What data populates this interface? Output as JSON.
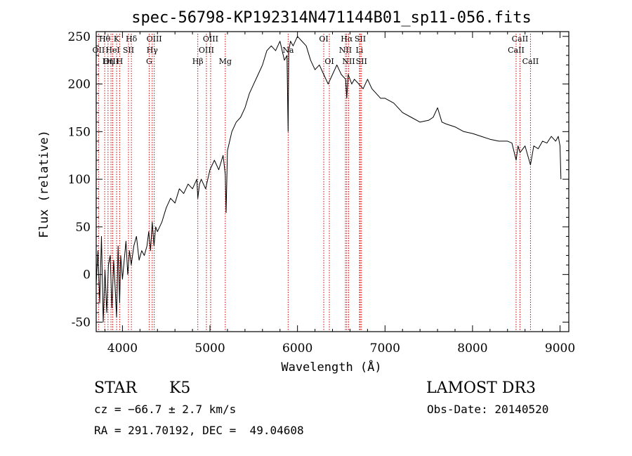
{
  "chart_data": {
    "type": "line",
    "title": "spec-56798-KP192314N471144B01_sp11-056.fits",
    "xlabel": "Wavelength (Å)",
    "ylabel": "Flux (relative)",
    "xlim": [
      3700,
      9100
    ],
    "ylim": [
      -60,
      255
    ],
    "x_ticks": [
      4000,
      5000,
      6000,
      7000,
      8000,
      9000
    ],
    "y_ticks": [
      -50,
      0,
      50,
      100,
      150,
      200,
      250
    ],
    "grid": false,
    "series": [
      {
        "x": [
          3700,
          3720,
          3740,
          3760,
          3780,
          3800,
          3820,
          3840,
          3860,
          3880,
          3900,
          3920,
          3933,
          3950,
          3968,
          3980,
          4000,
          4020,
          4040,
          4060,
          4080,
          4100,
          4130,
          4160,
          4190,
          4220,
          4250,
          4280,
          4300,
          4320,
          4340,
          4360,
          4380,
          4400,
          4450,
          4500,
          4550,
          4600,
          4650,
          4700,
          4750,
          4800,
          4850,
          4861,
          4880,
          4900,
          4950,
          5000,
          5050,
          5100,
          5150,
          5175,
          5184,
          5200,
          5250,
          5300,
          5350,
          5400,
          5450,
          5500,
          5550,
          5600,
          5650,
          5700,
          5750,
          5800,
          5850,
          5880,
          5893,
          5900,
          5920,
          5950,
          6000,
          6050,
          6100,
          6150,
          6200,
          6250,
          6300,
          6350,
          6400,
          6450,
          6500,
          6550,
          6563,
          6580,
          6620,
          6650,
          6700,
          6750,
          6800,
          6850,
          6900,
          6950,
          7000,
          7100,
          7200,
          7300,
          7400,
          7500,
          7550,
          7600,
          7650,
          7700,
          7800,
          7900,
          8000,
          8100,
          8200,
          8300,
          8400,
          8450,
          8498,
          8520,
          8542,
          8600,
          8662,
          8700,
          8750,
          8800,
          8850,
          8900,
          8950,
          8980,
          9000,
          9010
        ],
        "y": [
          -10,
          25,
          -30,
          40,
          -50,
          5,
          -40,
          10,
          20,
          -35,
          15,
          -20,
          -45,
          30,
          -30,
          20,
          -5,
          15,
          35,
          0,
          25,
          10,
          30,
          40,
          15,
          25,
          20,
          30,
          45,
          25,
          55,
          30,
          50,
          45,
          55,
          70,
          80,
          75,
          90,
          85,
          95,
          90,
          100,
          80,
          95,
          100,
          90,
          110,
          120,
          110,
          125,
          105,
          65,
          130,
          150,
          160,
          165,
          175,
          190,
          200,
          210,
          220,
          235,
          240,
          235,
          245,
          225,
          230,
          150,
          235,
          245,
          240,
          250,
          245,
          240,
          225,
          215,
          220,
          210,
          200,
          210,
          220,
          210,
          205,
          185,
          210,
          200,
          205,
          200,
          195,
          205,
          195,
          190,
          185,
          185,
          180,
          170,
          165,
          160,
          162,
          165,
          175,
          160,
          158,
          155,
          150,
          148,
          145,
          142,
          140,
          140,
          138,
          120,
          135,
          128,
          135,
          115,
          135,
          132,
          140,
          138,
          145,
          140,
          145,
          135,
          100
        ]
      }
    ],
    "line_markers": [
      {
        "label": "Hθ",
        "wavelength": 3797,
        "row": 0
      },
      {
        "label": "OII",
        "wavelength": 3727,
        "row": 1
      },
      {
        "label": "OIII",
        "wavelength": 3869,
        "row": 2
      },
      {
        "label": "K",
        "wavelength": 3933,
        "row": 0
      },
      {
        "label": "HeI",
        "wavelength": 3889,
        "row": 1
      },
      {
        "label": "Hη",
        "wavelength": 3835,
        "row": 2
      },
      {
        "label": "SII",
        "wavelength": 4069,
        "row": 1
      },
      {
        "label": "H",
        "wavelength": 3968,
        "row": 2
      },
      {
        "label": "Hδ",
        "wavelength": 4102,
        "row": 0
      },
      {
        "label": "OIII",
        "wavelength": 4363,
        "row": 0
      },
      {
        "label": "Hγ",
        "wavelength": 4340,
        "row": 1
      },
      {
        "label": "G",
        "wavelength": 4305,
        "row": 2
      },
      {
        "label": "OIII",
        "wavelength": 5007,
        "row": 0
      },
      {
        "label": "OIII",
        "wavelength": 4959,
        "row": 1
      },
      {
        "label": "Hβ",
        "wavelength": 4861,
        "row": 2
      },
      {
        "label": "Mg",
        "wavelength": 5175,
        "row": 2
      },
      {
        "label": "Na",
        "wavelength": 5893,
        "row": 1
      },
      {
        "label": "OI",
        "wavelength": 6300,
        "row": 0
      },
      {
        "label": "OI",
        "wavelength": 6364,
        "row": 2
      },
      {
        "label": "Hα",
        "wavelength": 6563,
        "row": 0
      },
      {
        "label": "NII",
        "wavelength": 6548,
        "row": 1
      },
      {
        "label": "NII",
        "wavelength": 6584,
        "row": 2
      },
      {
        "label": "SII",
        "wavelength": 6717,
        "row": 0
      },
      {
        "label": "Li",
        "wavelength": 6708,
        "row": 1
      },
      {
        "label": "SII",
        "wavelength": 6731,
        "row": 2
      },
      {
        "label": "CaII",
        "wavelength": 8542,
        "row": 0
      },
      {
        "label": "CaII",
        "wavelength": 8498,
        "row": 1
      },
      {
        "label": "CaII",
        "wavelength": 8662,
        "row": 2
      }
    ]
  },
  "info": {
    "class_label": "STAR",
    "subclass": "K5",
    "survey": "LAMOST DR3",
    "cz_text": "cz = −66.7 ± 2.7 km/s",
    "obs_date_text": "Obs-Date: 20140520",
    "radec_text": "RA = 291.70192, DEC =  49.04608"
  },
  "colors": {
    "line_marker": "#cc0000",
    "spectrum": "#000000"
  }
}
